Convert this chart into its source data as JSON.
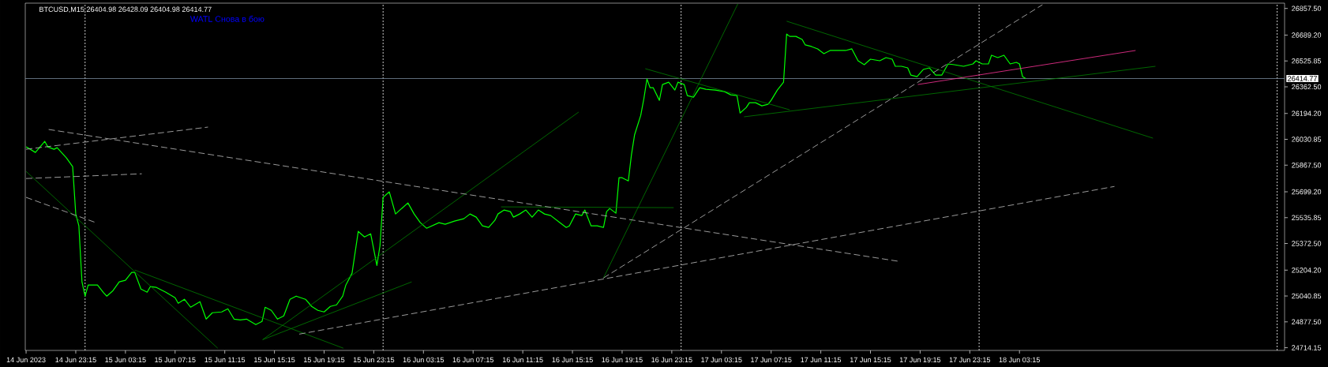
{
  "chart_data": {
    "type": "line",
    "title": "BTCUSD,M15  26404.98 26428.09 26404.98 26414.77",
    "annotations": [
      "WATL Снова в бою"
    ],
    "xlim": [
      "2023-06-14T19:11",
      "2023-06-19T00:36"
    ],
    "ylim": [
      24697,
      26891
    ],
    "xticks": [
      {
        "value": "2023-06-14T19:15",
        "label": "14 Jun 2023"
      },
      {
        "value": "2023-06-14T23:15",
        "label": "14 Jun 23:15"
      },
      {
        "value": "2023-06-15T03:15",
        "label": "15 Jun 03:15"
      },
      {
        "value": "2023-06-15T07:15",
        "label": "15 Jun 07:15"
      },
      {
        "value": "2023-06-15T11:15",
        "label": "15 Jun 11:15"
      },
      {
        "value": "2023-06-15T15:15",
        "label": "15 Jun 15:15"
      },
      {
        "value": "2023-06-15T19:15",
        "label": "15 Jun 19:15"
      },
      {
        "value": "2023-06-15T23:15",
        "label": "15 Jun 23:15"
      },
      {
        "value": "2023-06-16T03:15",
        "label": "16 Jun 03:15"
      },
      {
        "value": "2023-06-16T07:15",
        "label": "16 Jun 07:15"
      },
      {
        "value": "2023-06-16T11:15",
        "label": "16 Jun 11:15"
      },
      {
        "value": "2023-06-16T15:15",
        "label": "16 Jun 15:15"
      },
      {
        "value": "2023-06-16T19:15",
        "label": "16 Jun 19:15"
      },
      {
        "value": "2023-06-16T23:15",
        "label": "16 Jun 23:15"
      },
      {
        "value": "2023-06-17T03:15",
        "label": "17 Jun 03:15"
      },
      {
        "value": "2023-06-17T07:15",
        "label": "17 Jun 07:15"
      },
      {
        "value": "2023-06-17T11:15",
        "label": "17 Jun 11:15"
      },
      {
        "value": "2023-06-17T15:15",
        "label": "17 Jun 15:15"
      },
      {
        "value": "2023-06-17T19:15",
        "label": "17 Jun 19:15"
      },
      {
        "value": "2023-06-17T23:15",
        "label": "17 Jun 23:15"
      },
      {
        "value": "2023-06-18T03:15",
        "label": "18 Jun 03:15"
      }
    ],
    "yticks": [
      {
        "value": 26857.5,
        "label": "26857.50"
      },
      {
        "value": 26689.2,
        "label": "26689.20"
      },
      26525.85,
      {
        "value": 26362.5,
        "label": "26362.50"
      },
      {
        "value": 26194.2,
        "label": "26194.20"
      },
      26030.85,
      {
        "value": 25867.5,
        "label": "25867.50"
      },
      {
        "value": 25699.2,
        "label": "25699.20"
      },
      25535.85,
      {
        "value": 25372.5,
        "label": "25372.50"
      },
      {
        "value": 25204.2,
        "label": "25204.20"
      },
      25040.85,
      {
        "value": 24877.5,
        "label": "24877.50"
      },
      24714.15
    ],
    "ref_lines": [
      {
        "axis": "x",
        "value": "2023-06-15T00:00",
        "color": "#ffffff",
        "line_style": "dotted"
      },
      {
        "axis": "x",
        "value": "2023-06-16T00:00",
        "color": "#ffffff",
        "line_style": "dotted"
      },
      {
        "axis": "x",
        "value": "2023-06-17T00:00",
        "color": "#ffffff",
        "line_style": "dotted"
      },
      {
        "axis": "x",
        "value": "2023-06-18T00:00",
        "color": "#ffffff",
        "line_style": "dotted"
      },
      {
        "axis": "x",
        "value": "2023-06-19T00:00",
        "color": "#ffffff",
        "line_style": "dotted"
      },
      {
        "axis": "y",
        "value": 26414.77,
        "label": "26414.77",
        "color": "#778899",
        "line_style": "solid"
      }
    ],
    "series": [
      {
        "color": "#00ff00",
        "x": [
          "2023-06-14T19:15",
          "2023-06-14T20:00",
          "2023-06-14T20:45",
          "2023-06-14T21:00",
          "2023-06-14T21:30",
          "2023-06-14T21:45",
          "2023-06-14T22:30",
          "2023-06-14T23:00",
          "2023-06-14T23:15",
          "2023-06-14T23:30",
          "2023-06-14T23:45",
          "2023-06-15T00:00",
          "2023-06-15T00:15",
          "2023-06-15T01:00",
          "2023-06-15T01:30",
          "2023-06-15T01:45",
          "2023-06-15T02:15",
          "2023-06-15T02:45",
          "2023-06-15T03:15",
          "2023-06-15T03:45",
          "2023-06-15T04:00",
          "2023-06-15T04:30",
          "2023-06-15T05:00",
          "2023-06-15T05:15",
          "2023-06-15T05:45",
          "2023-06-15T06:30",
          "2023-06-15T07:15",
          "2023-06-15T07:30",
          "2023-06-15T08:00",
          "2023-06-15T08:30",
          "2023-06-15T09:15",
          "2023-06-15T09:45",
          "2023-06-15T10:15",
          "2023-06-15T11:00",
          "2023-06-15T11:30",
          "2023-06-15T12:00",
          "2023-06-15T12:30",
          "2023-06-15T13:00",
          "2023-06-15T13:45",
          "2023-06-15T14:15",
          "2023-06-15T14:30",
          "2023-06-15T15:00",
          "2023-06-15T15:30",
          "2023-06-15T16:00",
          "2023-06-15T16:30",
          "2023-06-15T17:00",
          "2023-06-15T17:45",
          "2023-06-15T18:15",
          "2023-06-15T18:45",
          "2023-06-15T19:15",
          "2023-06-15T19:45",
          "2023-06-15T20:15",
          "2023-06-15T20:45",
          "2023-06-15T21:00",
          "2023-06-15T21:30",
          "2023-06-15T22:00",
          "2023-06-15T22:30",
          "2023-06-15T23:00",
          "2023-06-15T23:30",
          "2023-06-15T23:45",
          "2023-06-16T00:00",
          "2023-06-16T00:30",
          "2023-06-16T01:00",
          "2023-06-16T01:30",
          "2023-06-16T02:00",
          "2023-06-16T02:30",
          "2023-06-16T03:00",
          "2023-06-16T03:30",
          "2023-06-16T04:30",
          "2023-06-16T05:00",
          "2023-06-16T05:45",
          "2023-06-16T06:30",
          "2023-06-16T07:00",
          "2023-06-16T07:30",
          "2023-06-16T08:00",
          "2023-06-16T08:30",
          "2023-06-16T09:00",
          "2023-06-16T09:15",
          "2023-06-16T09:45",
          "2023-06-16T10:15",
          "2023-06-16T10:30",
          "2023-06-16T11:00",
          "2023-06-16T11:30",
          "2023-06-16T12:00",
          "2023-06-16T12:30",
          "2023-06-16T13:00",
          "2023-06-16T13:30",
          "2023-06-16T14:15",
          "2023-06-16T14:45",
          "2023-06-16T15:00",
          "2023-06-16T15:30",
          "2023-06-16T16:00",
          "2023-06-16T16:15",
          "2023-06-16T16:45",
          "2023-06-16T17:15",
          "2023-06-16T17:45",
          "2023-06-16T18:00",
          "2023-06-16T18:15",
          "2023-06-16T18:45",
          "2023-06-16T19:00",
          "2023-06-16T19:15",
          "2023-06-16T19:45",
          "2023-06-16T20:00",
          "2023-06-16T20:15",
          "2023-06-16T20:45",
          "2023-06-16T21:00",
          "2023-06-16T21:15",
          "2023-06-16T21:30",
          "2023-06-16T21:45",
          "2023-06-16T22:15",
          "2023-06-16T22:30",
          "2023-06-16T23:00",
          "2023-06-16T23:30",
          "2023-06-16T23:45",
          "2023-06-17T00:15",
          "2023-06-17T00:30",
          "2023-06-17T01:00",
          "2023-06-17T01:30",
          "2023-06-17T02:00",
          "2023-06-17T02:45",
          "2023-06-17T03:30",
          "2023-06-17T04:00",
          "2023-06-17T04:30",
          "2023-06-17T04:45",
          "2023-06-17T05:15",
          "2023-06-17T05:30",
          "2023-06-17T06:00",
          "2023-06-17T06:30",
          "2023-06-17T07:00",
          "2023-06-17T07:15",
          "2023-06-17T07:45",
          "2023-06-17T08:15",
          "2023-06-17T08:30",
          "2023-06-17T08:45",
          "2023-06-17T09:15",
          "2023-06-17T09:45",
          "2023-06-17T10:00",
          "2023-06-17T10:30",
          "2023-06-17T11:00",
          "2023-06-17T11:30",
          "2023-06-17T12:00",
          "2023-06-17T12:30",
          "2023-06-17T13:15",
          "2023-06-17T13:45",
          "2023-06-17T14:15",
          "2023-06-17T14:45",
          "2023-06-17T15:15",
          "2023-06-17T16:00",
          "2023-06-17T16:30",
          "2023-06-17T17:00",
          "2023-06-17T17:15",
          "2023-06-17T17:45",
          "2023-06-17T18:15",
          "2023-06-17T18:30",
          "2023-06-17T19:00",
          "2023-06-17T19:30",
          "2023-06-17T20:00",
          "2023-06-17T20:30",
          "2023-06-17T21:00",
          "2023-06-17T21:30",
          "2023-06-17T22:00",
          "2023-06-17T22:45",
          "2023-06-17T23:30",
          "2023-06-17T23:45",
          "2023-06-18T00:15",
          "2023-06-18T00:45",
          "2023-06-18T01:00",
          "2023-06-18T01:30",
          "2023-06-18T02:00",
          "2023-06-18T02:30",
          "2023-06-18T03:00",
          "2023-06-18T03:15",
          "2023-06-18T03:30",
          "2023-06-18T03:45"
        ],
        "values": [
          25983,
          25948,
          26018,
          25983,
          25968,
          25978,
          25913,
          25858,
          25559,
          25484,
          25130,
          25040,
          25110,
          25110,
          25060,
          25040,
          25075,
          25130,
          25140,
          25190,
          25190,
          25085,
          25065,
          25100,
          25095,
          25065,
          25030,
          24995,
          25020,
          24970,
          25005,
          24895,
          24935,
          24940,
          24960,
          24895,
          24890,
          24895,
          24860,
          24880,
          24970,
          24950,
          24895,
          24915,
          25020,
          25040,
          25020,
          24975,
          24950,
          24940,
          24975,
          24985,
          25040,
          25110,
          25185,
          25449,
          25414,
          25434,
          25234,
          25359,
          25664,
          25699,
          25559,
          25594,
          25629,
          25559,
          25504,
          25469,
          25504,
          25494,
          25514,
          25529,
          25559,
          25539,
          25484,
          25474,
          25519,
          25559,
          25584,
          25574,
          25539,
          25559,
          25584,
          25539,
          25584,
          25559,
          25549,
          25504,
          25474,
          25484,
          25559,
          25549,
          25584,
          25484,
          25484,
          25474,
          25574,
          25594,
          25564,
          25788,
          25788,
          25768,
          25933,
          26058,
          26182,
          26287,
          26412,
          26357,
          26357,
          26277,
          26377,
          26392,
          26342,
          26392,
          26377,
          26307,
          26297,
          26357,
          26347,
          26342,
          26332,
          26312,
          26307,
          26197,
          26232,
          26262,
          26262,
          26242,
          26252,
          26277,
          26342,
          26392,
          26696,
          26681,
          26681,
          26662,
          26627,
          26617,
          26602,
          26572,
          26592,
          26592,
          26592,
          26602,
          26527,
          26502,
          26537,
          26527,
          26547,
          26537,
          26492,
          26492,
          26482,
          26437,
          26427,
          26472,
          26482,
          26437,
          26437,
          26507,
          26502,
          26492,
          26507,
          26527,
          26507,
          26507,
          26562,
          26547,
          26562,
          26507,
          26517,
          26507,
          26427,
          26415
        ]
      },
      {
        "color": "#008000",
        "x": [
          "2023-06-14T19:15",
          "2023-06-15T10:41"
        ],
        "values": [
          25828,
          24711
        ]
      },
      {
        "color": "#008000",
        "x": [
          "2023-06-15T04:00",
          "2023-06-15T20:48"
        ],
        "values": [
          25205,
          24711
        ]
      },
      {
        "color": "#008000",
        "x": [
          "2023-06-15T14:18",
          "2023-06-16T02:18"
        ],
        "values": [
          24765,
          25130
        ]
      },
      {
        "color": "#008000",
        "x": [
          "2023-06-15T14:18",
          "2023-06-16T15:45"
        ],
        "values": [
          24765,
          26203
        ]
      },
      {
        "color": "#008000",
        "x": [
          "2023-06-16T17:45",
          "2023-06-17T04:34"
        ],
        "values": [
          25155,
          26886
        ]
      },
      {
        "color": "#008000",
        "x": [
          "2023-06-16T21:07",
          "2023-06-17T08:45"
        ],
        "values": [
          26477,
          26217
        ]
      },
      {
        "color": "#008000",
        "x": [
          "2023-06-17T05:04",
          "2023-06-18T14:12"
        ],
        "values": [
          26173,
          26492
        ]
      },
      {
        "color": "#008000",
        "x": [
          "2023-06-17T08:30",
          "2023-06-18T14:00"
        ],
        "values": [
          26777,
          26038
        ]
      },
      {
        "color": "#008000",
        "x": [
          "2023-06-16T09:30",
          "2023-06-16T23:24"
        ],
        "values": [
          25604,
          25599
        ]
      },
      {
        "color": "#ff3399",
        "x": [
          "2023-06-17T19:04",
          "2023-06-18T12:36"
        ],
        "values": [
          26377,
          26592
        ]
      },
      {
        "color": "#c0c0c0",
        "line_style": "dashed",
        "x": [
          "2023-06-14T21:04",
          "2023-06-17T17:36"
        ],
        "values": [
          26093,
          25259
        ]
      },
      {
        "color": "#c0c0c0",
        "line_style": "dashed",
        "x": [
          "2023-06-14T19:15",
          "2023-06-15T09:54"
        ],
        "values": [
          25968,
          26108
        ]
      },
      {
        "color": "#c0c0c0",
        "line_style": "dashed",
        "x": [
          "2023-06-14T19:15",
          "2023-06-15T04:34"
        ],
        "values": [
          25783,
          25813
        ]
      },
      {
        "color": "#c0c0c0",
        "line_style": "dashed",
        "x": [
          "2023-06-14T19:15",
          "2023-06-15T00:53"
        ],
        "values": [
          25664,
          25504
        ]
      },
      {
        "color": "#c0c0c0",
        "line_style": "dashed",
        "x": [
          "2023-06-15T17:15",
          "2023-06-18T10:54"
        ],
        "values": [
          24800,
          25733
        ]
      },
      {
        "color": "#c0c0c0",
        "line_style": "dashed",
        "x": [
          "2023-06-16T17:45",
          "2023-06-18T05:06"
        ],
        "values": [
          25155,
          26881
        ]
      }
    ]
  }
}
